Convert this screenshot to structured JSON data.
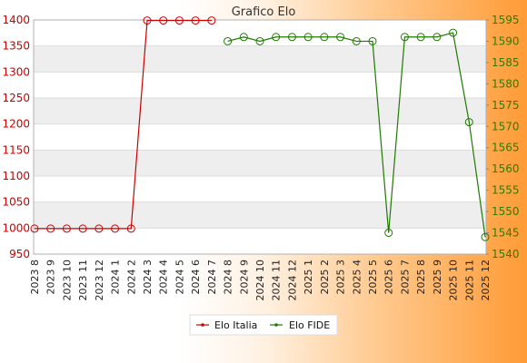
{
  "chart_data": {
    "type": "line",
    "title": "Grafico Elo",
    "categories": [
      "2023 8",
      "2023 9",
      "2023 10",
      "2023 11",
      "2023 12",
      "2024 1",
      "2024 2",
      "2024 3",
      "2024 4",
      "2024 5",
      "2024 6",
      "2024 7",
      "2024 8",
      "2024 9",
      "2024 10",
      "2024 11",
      "2024 12",
      "2025 1",
      "2025 2",
      "2025 3",
      "2025 4",
      "2025 5",
      "2025 6",
      "2025 7",
      "2025 8",
      "2025 9",
      "2025 10",
      "2025 11",
      "2025 12"
    ],
    "y_left": {
      "min": 950,
      "max": 1400,
      "step": 50,
      "ticks": [
        950,
        1000,
        1050,
        1100,
        1150,
        1200,
        1250,
        1300,
        1350,
        1400
      ]
    },
    "y_right": {
      "min": 1540,
      "max": 1595,
      "step": 5,
      "ticks": [
        1540,
        1545,
        1550,
        1555,
        1560,
        1565,
        1570,
        1575,
        1580,
        1585,
        1590,
        1595
      ]
    },
    "series": [
      {
        "name": "Elo Italia",
        "axis": "left",
        "color": "#cc0000",
        "values": [
          999,
          999,
          999,
          999,
          999,
          999,
          999,
          1399,
          1399,
          1399,
          1399,
          1399,
          null,
          null,
          null,
          null,
          null,
          null,
          null,
          null,
          null,
          null,
          null,
          null,
          null,
          null,
          null,
          null,
          null
        ]
      },
      {
        "name": "Elo FIDE",
        "axis": "right",
        "color": "#1f7a00",
        "values": [
          null,
          null,
          null,
          null,
          null,
          null,
          null,
          null,
          null,
          null,
          null,
          null,
          1590,
          1591,
          1590,
          1591,
          1591,
          1591,
          1591,
          1591,
          1590,
          1590,
          1545,
          1591,
          1591,
          1591,
          1592,
          1571,
          1544
        ]
      }
    ],
    "grid": true,
    "legend_position": "bottom"
  }
}
